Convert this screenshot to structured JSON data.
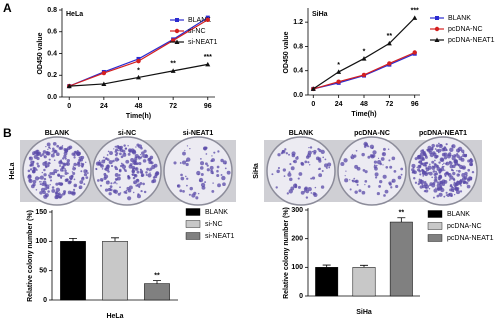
{
  "panel_labels": [
    "A",
    "B"
  ],
  "photos": [
    {
      "label": "HeLa",
      "wells": [
        "BLANK",
        "si-NC",
        "si-NEAT1"
      ]
    },
    {
      "label": "SiHa",
      "wells": [
        "BLANK",
        "pcDNA-NC",
        "pcDNA-NEAT1"
      ]
    }
  ],
  "chart_data": [
    {
      "type": "line",
      "title": "HeLa",
      "x_label": "Time(h)",
      "y_label": "OD450 value",
      "x": [
        0,
        24,
        48,
        72,
        96
      ],
      "xlim": [
        -5,
        101
      ],
      "xticks": [
        0,
        24,
        48,
        72,
        96
      ],
      "ylim": [
        0,
        0.8
      ],
      "yticks": [
        {
          "value": 0,
          "label": "0.0"
        },
        0.2,
        0.4,
        0.6,
        0.8
      ],
      "series": [
        {
          "name": "BLANK",
          "color": "#2b2bd0",
          "marker": "square",
          "values": [
            0.1,
            0.23,
            0.35,
            0.53,
            0.73
          ]
        },
        {
          "name": "si-NC",
          "color": "#d42020",
          "marker": "circle",
          "values": [
            0.1,
            0.22,
            0.33,
            0.52,
            0.71
          ]
        },
        {
          "name": "si-NEAT1",
          "color": "#111111",
          "marker": "triangle",
          "values": [
            0.1,
            0.12,
            0.18,
            0.24,
            0.3
          ],
          "annotations": [
            null,
            null,
            "*",
            "**",
            "***"
          ]
        }
      ]
    },
    {
      "type": "line",
      "title": "SiHa",
      "x_label": "Time(h)",
      "y_label": "OD450 value",
      "x": [
        0,
        24,
        48,
        72,
        96
      ],
      "xlim": [
        -5,
        101
      ],
      "xticks": [
        0,
        24,
        48,
        72,
        96
      ],
      "ylim": [
        0,
        1.4
      ],
      "yticks": [
        {
          "value": 0,
          "label": "0.0"
        },
        0.4,
        0.8,
        1.2
      ],
      "series": [
        {
          "name": "BLANK",
          "color": "#2b2bd0",
          "marker": "square",
          "values": [
            0.1,
            0.2,
            0.32,
            0.5,
            0.68
          ]
        },
        {
          "name": "pcDNA-NC",
          "color": "#d42020",
          "marker": "circle",
          "values": [
            0.1,
            0.22,
            0.33,
            0.52,
            0.7
          ]
        },
        {
          "name": "pcDNA-NEAT1",
          "color": "#111111",
          "marker": "triangle",
          "values": [
            0.1,
            0.38,
            0.6,
            0.85,
            1.27
          ],
          "annotations": [
            null,
            "*",
            "*",
            "**",
            "***"
          ]
        }
      ]
    },
    {
      "type": "bar",
      "x_label": "HeLa",
      "y_label": "Relative colony number (%)",
      "categories": [
        "BLANK",
        "si-NC",
        "si-NEAT1"
      ],
      "values": [
        100,
        100,
        28
      ],
      "errors": [
        5,
        6,
        5
      ],
      "colors": [
        "#000000",
        "#c8c8c8",
        "#808080"
      ],
      "annotations": [
        null,
        null,
        "**"
      ],
      "ylim": [
        0,
        150
      ],
      "yticks": [
        0,
        50,
        100,
        150
      ]
    },
    {
      "type": "bar",
      "x_label": "SiHa",
      "y_label": "Relative colony number (%)",
      "categories": [
        "BLANK",
        "pcDNA-NC",
        "pcDNA-NEAT1"
      ],
      "values": [
        100,
        100,
        258
      ],
      "errors": [
        8,
        7,
        15
      ],
      "colors": [
        "#000000",
        "#c8c8c8",
        "#808080"
      ],
      "annotations": [
        null,
        null,
        "**"
      ],
      "ylim": [
        0,
        300
      ],
      "yticks": [
        0,
        100,
        200,
        300
      ]
    }
  ]
}
